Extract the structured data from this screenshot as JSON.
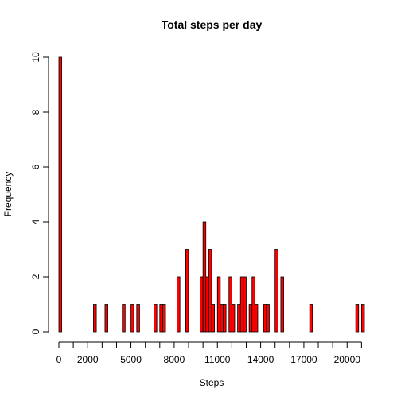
{
  "chart_data": {
    "type": "bar",
    "title": "Total steps per day",
    "xlabel": "Steps",
    "ylabel": "Frequency",
    "bar_color": "#ff0000",
    "bin_width": 200,
    "xlim": [
      0,
      21200
    ],
    "ylim": [
      0,
      10
    ],
    "x_ticks": [
      0,
      1000,
      2000,
      3000,
      4000,
      5000,
      6000,
      7000,
      8000,
      9000,
      10000,
      11000,
      12000,
      13000,
      14000,
      15000,
      16000,
      17000,
      18000,
      19000,
      20000,
      21000
    ],
    "x_tick_labels": [
      "0",
      "",
      "2000",
      "",
      "",
      "5000",
      "",
      "",
      "8000",
      "",
      "",
      "11000",
      "",
      "",
      "14000",
      "",
      "",
      "17000",
      "",
      "",
      "20000",
      ""
    ],
    "y_ticks": [
      0,
      2,
      4,
      6,
      8,
      10
    ],
    "y_tick_labels": [
      "0",
      "2",
      "4",
      "6",
      "8",
      "10"
    ],
    "bins": [
      {
        "x": 0,
        "count": 10
      },
      {
        "x": 2400,
        "count": 1
      },
      {
        "x": 3200,
        "count": 1
      },
      {
        "x": 4400,
        "count": 1
      },
      {
        "x": 5000,
        "count": 1
      },
      {
        "x": 5400,
        "count": 1
      },
      {
        "x": 6600,
        "count": 1
      },
      {
        "x": 7000,
        "count": 1
      },
      {
        "x": 7200,
        "count": 1
      },
      {
        "x": 8200,
        "count": 2
      },
      {
        "x": 8800,
        "count": 3
      },
      {
        "x": 9800,
        "count": 2
      },
      {
        "x": 10000,
        "count": 4
      },
      {
        "x": 10200,
        "count": 2
      },
      {
        "x": 10400,
        "count": 3
      },
      {
        "x": 10600,
        "count": 1
      },
      {
        "x": 11000,
        "count": 2
      },
      {
        "x": 11200,
        "count": 1
      },
      {
        "x": 11400,
        "count": 1
      },
      {
        "x": 11800,
        "count": 2
      },
      {
        "x": 12000,
        "count": 1
      },
      {
        "x": 12400,
        "count": 1
      },
      {
        "x": 12600,
        "count": 2
      },
      {
        "x": 12800,
        "count": 2
      },
      {
        "x": 13200,
        "count": 1
      },
      {
        "x": 13400,
        "count": 2
      },
      {
        "x": 13600,
        "count": 1
      },
      {
        "x": 14200,
        "count": 1
      },
      {
        "x": 14400,
        "count": 1
      },
      {
        "x": 15000,
        "count": 3
      },
      {
        "x": 15400,
        "count": 2
      },
      {
        "x": 17400,
        "count": 1
      },
      {
        "x": 20600,
        "count": 1
      },
      {
        "x": 21000,
        "count": 1
      }
    ]
  }
}
